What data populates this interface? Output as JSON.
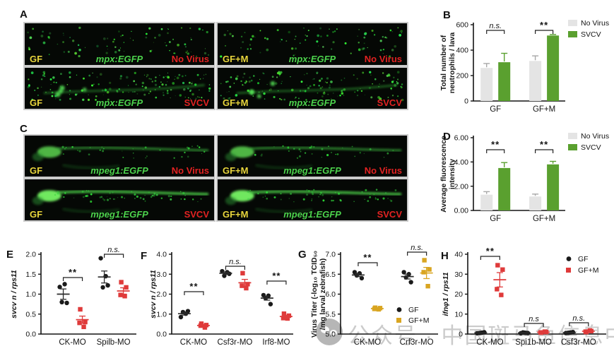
{
  "figure": {
    "panel_labels": [
      "A",
      "B",
      "C",
      "D",
      "E",
      "F",
      "G",
      "H"
    ]
  },
  "watermark": {
    "icon": "wechat-logo-icon",
    "text": "公众号 · 中国斑马鱼信息中心"
  },
  "colors": {
    "gf_black": "#1a1a1a",
    "gfm_red": "#df3a3a",
    "gfm_gold": "#d9a521",
    "svcv_green": "#5aa02f",
    "no_virus_gray": "#e4e4e4",
    "image_label_yellow": "#e8d53c",
    "image_reporter_green": "#4cd24c",
    "image_condition_red": "#e32222",
    "axis_black": "#141414",
    "watermark_gray": "#c3c3c3"
  },
  "micrographs": {
    "A": {
      "cells": [
        {
          "group": "GF",
          "reporter": "mpx:EGFP",
          "condition": "No Virus",
          "pattern": "dots-sparse"
        },
        {
          "group": "GF+M",
          "reporter": "mpx:EGFP",
          "condition": "No Virus",
          "pattern": "dots-sparse"
        },
        {
          "group": "GF",
          "reporter": "mpx:EGFP",
          "condition": "SVCV",
          "pattern": "dots-dense"
        },
        {
          "group": "GF+M",
          "reporter": "mpx:EGFP",
          "condition": "SVCV",
          "pattern": "dots-dense"
        }
      ]
    },
    "C": {
      "cells": [
        {
          "group": "GF",
          "reporter": "mpeg1:EGFP",
          "condition": "No Virus",
          "pattern": "fish-dim"
        },
        {
          "group": "GF+M",
          "reporter": "mpeg1:EGFP",
          "condition": "No Virus",
          "pattern": "fish-dim"
        },
        {
          "group": "GF",
          "reporter": "mpeg1:EGFP",
          "condition": "SVCV",
          "pattern": "fish-bright"
        },
        {
          "group": "GF+M",
          "reporter": "mpeg1:EGFP",
          "condition": "SVCV",
          "pattern": "fish-bright"
        }
      ]
    }
  },
  "chart_data": [
    {
      "id": "B",
      "type": "bar",
      "ylabel_lines": [
        "Total number of",
        "neutrophils / lava"
      ],
      "categories": [
        "GF",
        "GF+M"
      ],
      "series": [
        {
          "name": "No Virus",
          "color_key": "no_virus_gray",
          "values": [
            260,
            315
          ],
          "errors": [
            35,
            40
          ]
        },
        {
          "name": "SVCV",
          "color_key": "svcv_green",
          "values": [
            305,
            515
          ],
          "errors": [
            70,
            8
          ]
        }
      ],
      "ylim": [
        0,
        600
      ],
      "yticks": [
        "0",
        "200",
        "400",
        "600"
      ],
      "significance": [
        {
          "category": "GF",
          "label": "n.s."
        },
        {
          "category": "GF+M",
          "label": "**"
        }
      ],
      "legend": {
        "position": "top-right",
        "items": [
          "No Virus",
          "SVCV"
        ]
      }
    },
    {
      "id": "D",
      "type": "bar",
      "ylabel_lines": [
        "Average fluorescence",
        "intensity"
      ],
      "categories": [
        "GF",
        "GF+M"
      ],
      "series": [
        {
          "name": "No Virus",
          "color_key": "no_virus_gray",
          "values": [
            1.3,
            1.15
          ],
          "errors": [
            0.25,
            0.2
          ]
        },
        {
          "name": "SVCV",
          "color_key": "svcv_green",
          "values": [
            3.5,
            3.8
          ],
          "errors": [
            0.45,
            0.25
          ]
        }
      ],
      "ylim": [
        0,
        6
      ],
      "yticks": [
        "0.00",
        "2.00",
        "4.00",
        "6.00"
      ],
      "significance": [
        {
          "category": "GF",
          "label": "**"
        },
        {
          "category": "GF+M",
          "label": "**"
        }
      ],
      "legend": {
        "position": "top-right",
        "items": [
          "No Virus",
          "SVCV"
        ]
      }
    },
    {
      "id": "E",
      "type": "scatter",
      "ylabel": "svcv n / rps11",
      "ylabel_style": "italic",
      "categories": [
        "CK-MO",
        "Spilb-MO"
      ],
      "series": [
        {
          "name": "GF",
          "marker": "circle",
          "color_key": "gf_black",
          "points": [
            [
              1.18,
              1.25,
              0.8,
              0.78
            ],
            [
              1.9,
              1.45,
              1.17,
              1.22
            ]
          ],
          "means": [
            1.0,
            1.43
          ],
          "sems": [
            0.13,
            0.15
          ]
        },
        {
          "name": "GF+M",
          "marker": "square",
          "color_key": "gfm_red",
          "points": [
            [
              0.62,
              0.3,
              0.28,
              0.18
            ],
            [
              1.3,
              1.17,
              0.98,
              0.95
            ]
          ],
          "means": [
            0.36,
            1.08
          ],
          "sems": [
            0.09,
            0.08
          ]
        }
      ],
      "ylim": [
        0,
        2
      ],
      "yticks": [
        "0.0",
        "0.5",
        "1.0",
        "1.5",
        "2.0"
      ],
      "significance": [
        {
          "category": "CK-MO",
          "label": "**"
        },
        {
          "category": "Spilb-MO",
          "label": "n.s."
        }
      ]
    },
    {
      "id": "F",
      "type": "scatter",
      "ylabel": "svcv n / rps11",
      "ylabel_style": "italic",
      "categories": [
        "CK-MO",
        "Csf3r-MO",
        "Irf8-MO"
      ],
      "series": [
        {
          "name": "GF",
          "marker": "circle",
          "color_key": "gf_black",
          "points": [
            [
              0.85,
              1.02,
              1.1,
              1.15
            ],
            [
              3.15,
              3.1,
              2.92,
              3.02
            ],
            [
              1.95,
              1.92,
              1.8,
              1.5
            ]
          ],
          "means": [
            1.02,
            3.05,
            1.8
          ],
          "sems": [
            0.07,
            0.06,
            0.1
          ]
        },
        {
          "name": "GF+M",
          "marker": "square",
          "color_key": "gfm_red",
          "points": [
            [
              0.52,
              0.45,
              0.42,
              0.33
            ],
            [
              3.05,
              2.5,
              2.42,
              2.3
            ],
            [
              1.02,
              0.92,
              0.8,
              0.78
            ]
          ],
          "means": [
            0.43,
            2.57,
            0.88
          ],
          "sems": [
            0.05,
            0.17,
            0.06
          ]
        }
      ],
      "ylim": [
        0,
        4
      ],
      "yticks": [
        "0.0",
        "1.0",
        "2.0",
        "3.0",
        "4.0"
      ],
      "significance": [
        {
          "category": "CK-MO",
          "label": "**"
        },
        {
          "category": "Csf3r-MO",
          "label": "n.s."
        },
        {
          "category": "Irf8-MO",
          "label": "**"
        }
      ]
    },
    {
      "id": "G",
      "type": "scatter",
      "ylabel_lines": [
        "Virus Titer (-log₁₀ TCID₅₀",
        "/mg larval zebrafish)"
      ],
      "categories": [
        "CK-MO",
        "Crf3r-MO"
      ],
      "series": [
        {
          "name": "GF",
          "marker": "circle",
          "color_key": "gf_black",
          "points": [
            [
              6.55,
              6.52,
              6.47,
              6.4
            ],
            [
              6.55,
              6.5,
              6.42,
              6.3
            ]
          ],
          "means": [
            6.48,
            6.44
          ],
          "sems": [
            0.04,
            0.06
          ]
        },
        {
          "name": "GF+M",
          "marker": "square",
          "color_key": "gfm_gold",
          "points": [
            [
              5.66,
              5.65,
              5.63,
              5.62
            ],
            [
              6.85,
              6.62,
              6.55,
              6.2
            ]
          ],
          "means": [
            5.64,
            6.53
          ],
          "sems": [
            0.02,
            0.14
          ]
        }
      ],
      "ylim": [
        5,
        7
      ],
      "yticks": [
        "5.0",
        "5.5",
        "6.0",
        "6.5",
        "7.0"
      ],
      "significance": [
        {
          "category": "CK-MO",
          "label": "**"
        },
        {
          "category": "Crf3r-MO",
          "label": "n.s."
        }
      ],
      "legend": {
        "position": "inside-right",
        "items": [
          "GF",
          "GF+M"
        ]
      }
    },
    {
      "id": "H",
      "type": "scatter",
      "ylabel": "ifnφ1 / rps11",
      "ylabel_style": "italic",
      "categories": [
        "CK-MO",
        "Spi1b-MO",
        "Csf3r-MO"
      ],
      "series": [
        {
          "name": "GF",
          "marker": "circle",
          "color_key": "gf_black",
          "points": [
            [
              0.4,
              0.7,
              0.5,
              0.9,
              0.6
            ],
            [
              0.4,
              0.6,
              0.8,
              0.5,
              0.7
            ],
            [
              0.5,
              0.8,
              0.6,
              1.0,
              0.7
            ]
          ],
          "means": [
            0.6,
            0.6,
            0.7
          ],
          "sems": [
            0.1,
            0.1,
            0.1
          ]
        },
        {
          "name": "GF+M",
          "marker": "square",
          "color_key": "gfm_red",
          "points": [
            [
              34.5,
              32.3,
              22.5,
              19.6
            ],
            [
              0.7,
              1.0,
              0.8,
              1.2
            ],
            [
              1.0,
              1.5,
              1.2,
              1.8
            ]
          ],
          "means": [
            27.2,
            0.9,
            1.4
          ],
          "sems": [
            3.6,
            0.2,
            0.3
          ]
        }
      ],
      "ylim": [
        0,
        40
      ],
      "yticks": [
        "0",
        "10",
        "20",
        "30",
        "40"
      ],
      "significance": [
        {
          "category": "CK-MO",
          "label": "**"
        },
        {
          "category": "Spi1b-MO",
          "label": "n.s"
        },
        {
          "category": "Csf3r-MO",
          "label": "n.s."
        }
      ],
      "legend": {
        "position": "top-right",
        "items": [
          "GF",
          "GF+M"
        ]
      }
    }
  ]
}
